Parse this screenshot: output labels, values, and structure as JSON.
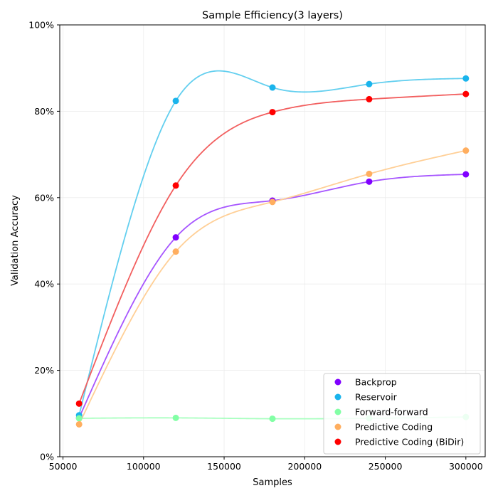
{
  "chart_data": {
    "type": "scatter",
    "title": "Sample Efficiency(3 layers)",
    "xlabel": "Samples",
    "ylabel": "Validation Accuracy",
    "xlim": [
      48000,
      312000
    ],
    "ylim": [
      0,
      100
    ],
    "x_ticks": [
      50000,
      100000,
      150000,
      200000,
      250000,
      300000
    ],
    "x_tick_labels": [
      "50000",
      "100000",
      "150000",
      "200000",
      "250000",
      "300000"
    ],
    "y_ticks": [
      0,
      20,
      40,
      60,
      80,
      100
    ],
    "y_tick_labels": [
      "0%",
      "20%",
      "40%",
      "60%",
      "80%",
      "100%"
    ],
    "grid": true,
    "legend_position": "bottom-right",
    "x": [
      60000,
      120000,
      180000,
      240000,
      300000
    ],
    "series": [
      {
        "name": "Backprop",
        "color": "#8000ff",
        "line_color": "#a655ff",
        "values": [
          9.0,
          50.8,
          59.3,
          63.7,
          65.4
        ]
      },
      {
        "name": "Reservoir",
        "color": "#1ab4ec",
        "line_color": "#63cfef",
        "values": [
          9.6,
          82.4,
          85.5,
          86.3,
          87.6
        ]
      },
      {
        "name": "Forward-forward",
        "color": "#82ffa5",
        "line_color": "#a9ffc0",
        "values": [
          8.9,
          9.0,
          8.8,
          8.9,
          9.2
        ]
      },
      {
        "name": "Predictive Coding",
        "color": "#ffae5f",
        "line_color": "#ffcf96",
        "values": [
          7.5,
          47.5,
          59.0,
          65.5,
          70.9
        ]
      },
      {
        "name": "Predictive Coding (BiDir)",
        "color": "#ff0000",
        "line_color": "#f25f5f",
        "values": [
          12.3,
          62.8,
          79.8,
          82.8,
          84.0
        ]
      }
    ]
  }
}
